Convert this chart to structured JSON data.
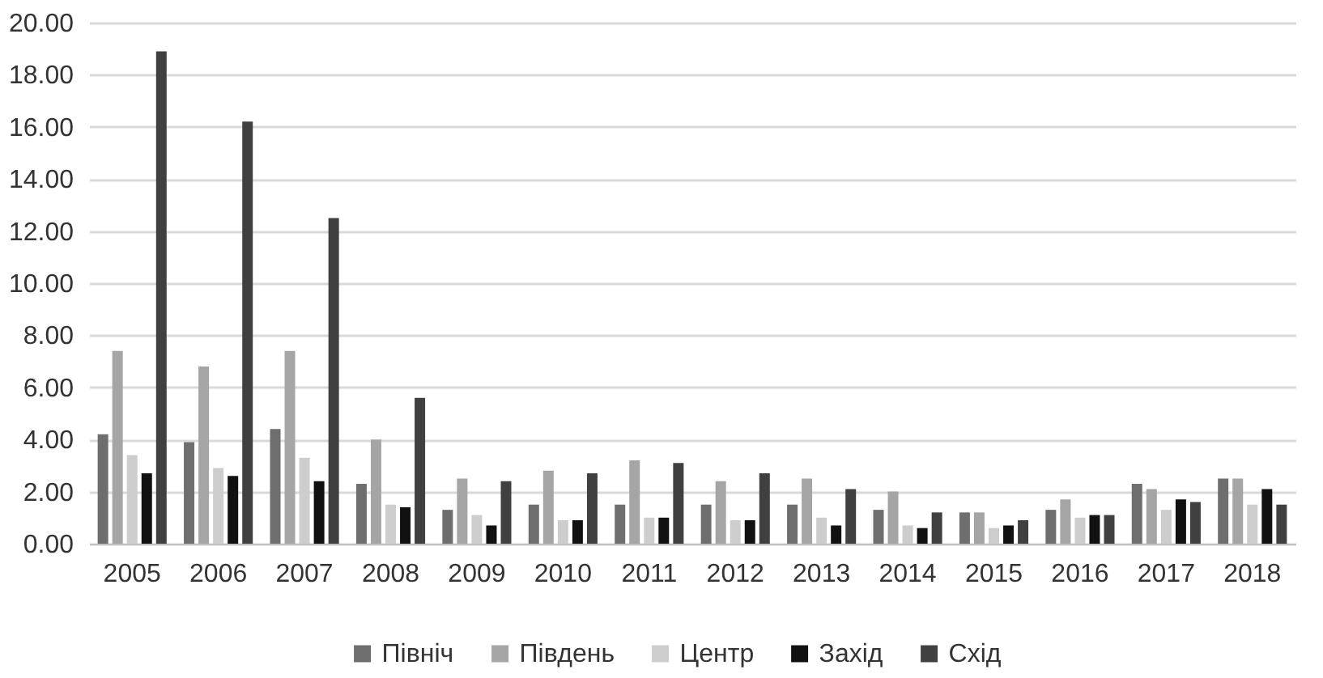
{
  "chart_data": {
    "type": "bar",
    "categories": [
      "2005",
      "2006",
      "2007",
      "2008",
      "2009",
      "2010",
      "2011",
      "2012",
      "2013",
      "2014",
      "2015",
      "2016",
      "2017",
      "2018"
    ],
    "series": [
      {
        "name": "Північ",
        "color": "#6e6e6e",
        "values": [
          4.2,
          3.9,
          4.4,
          2.3,
          1.3,
          1.5,
          1.5,
          1.5,
          1.5,
          1.3,
          1.2,
          1.3,
          2.3,
          2.5
        ]
      },
      {
        "name": "Південь",
        "color": "#a5a5a5",
        "values": [
          7.4,
          6.8,
          7.4,
          4.0,
          2.5,
          2.8,
          3.2,
          2.4,
          2.5,
          2.0,
          1.2,
          1.7,
          2.1,
          2.5
        ]
      },
      {
        "name": "Центр",
        "color": "#cdcdcd",
        "values": [
          3.4,
          2.9,
          3.3,
          1.5,
          1.1,
          0.9,
          1.0,
          0.9,
          1.0,
          0.7,
          0.6,
          1.0,
          1.3,
          1.5
        ]
      },
      {
        "name": "Захід",
        "color": "#111111",
        "values": [
          2.7,
          2.6,
          2.4,
          1.4,
          0.7,
          0.9,
          1.0,
          0.9,
          0.7,
          0.6,
          0.7,
          1.1,
          1.7,
          2.1
        ]
      },
      {
        "name": "Схід",
        "color": "#404040",
        "values": [
          18.9,
          16.2,
          12.5,
          5.6,
          2.4,
          2.7,
          3.1,
          2.7,
          2.1,
          1.2,
          0.9,
          1.1,
          1.6,
          1.5
        ]
      }
    ],
    "ylim": [
      0,
      20
    ],
    "yticks": [
      {
        "value": 0,
        "label": "0.00"
      },
      {
        "value": 2,
        "label": "2.00"
      },
      {
        "value": 4,
        "label": "4.00"
      },
      {
        "value": 6,
        "label": "6.00"
      },
      {
        "value": 8,
        "label": "8.00"
      },
      {
        "value": 10,
        "label": "10.00"
      },
      {
        "value": 12,
        "label": "12.00"
      },
      {
        "value": 14,
        "label": "14.00"
      },
      {
        "value": 16,
        "label": "16.00"
      },
      {
        "value": 18,
        "label": "18.00"
      },
      {
        "value": 20,
        "label": "20.00"
      }
    ],
    "grid": "y",
    "legend": "bottom"
  }
}
